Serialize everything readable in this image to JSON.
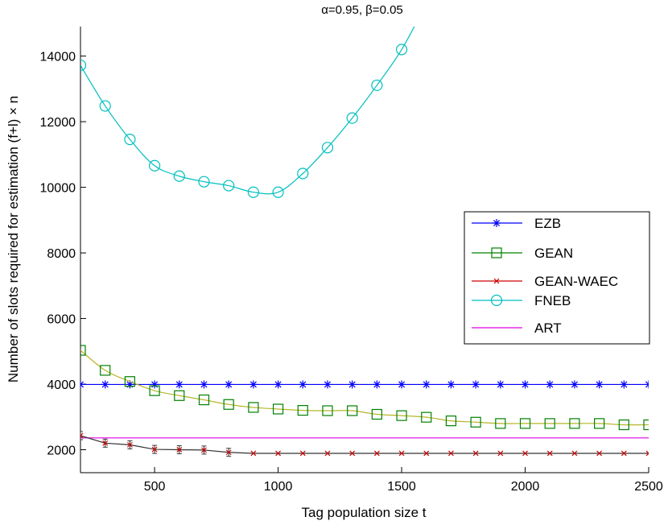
{
  "chart_data": {
    "type": "line",
    "title": "α=0.95, β=0.05",
    "xlabel": "Tag population size t",
    "ylabel": "Number of slots required for estimation (f+l) × n",
    "xlim": [
      200,
      2500
    ],
    "ylim": [
      1300,
      14900
    ],
    "xticks": [
      500,
      1000,
      1500,
      2000,
      2500
    ],
    "yticks": [
      2000,
      4000,
      6000,
      8000,
      10000,
      12000,
      14000
    ],
    "grid": false,
    "legend_position": "right",
    "series": [
      {
        "name": "EZB",
        "color": "#0000ff",
        "marker": "asterisk",
        "x": [
          200,
          300,
          400,
          500,
          600,
          700,
          800,
          900,
          1000,
          1100,
          1200,
          1300,
          1400,
          1500,
          1600,
          1700,
          1800,
          1900,
          2000,
          2100,
          2200,
          2300,
          2400,
          2500
        ],
        "y": [
          3990,
          3990,
          3990,
          3990,
          3990,
          3990,
          3990,
          3990,
          3990,
          3990,
          3990,
          3990,
          3990,
          3990,
          3990,
          3990,
          3990,
          3990,
          3990,
          3990,
          3990,
          3990,
          3990,
          3990
        ]
      },
      {
        "name": "GEAN",
        "color": "#008000",
        "line_color": "#b5b52a",
        "marker": "square",
        "x": [
          200,
          300,
          400,
          500,
          600,
          700,
          800,
          900,
          1000,
          1100,
          1200,
          1300,
          1400,
          1500,
          1600,
          1700,
          1800,
          1900,
          2000,
          2100,
          2200,
          2300,
          2400,
          2500
        ],
        "y": [
          5030,
          4420,
          4080,
          3800,
          3650,
          3520,
          3380,
          3290,
          3240,
          3200,
          3190,
          3190,
          3080,
          3040,
          2990,
          2880,
          2840,
          2800,
          2800,
          2800,
          2800,
          2800,
          2760,
          2760
        ]
      },
      {
        "name": "GEAN-WAEC",
        "color": "#cc0000",
        "line_color": "#333333",
        "marker": "x",
        "error_bars": true,
        "x": [
          200,
          300,
          400,
          500,
          600,
          700,
          800,
          900,
          1000,
          1100,
          1200,
          1300,
          1400,
          1500,
          1600,
          1700,
          1800,
          1900,
          2000,
          2100,
          2200,
          2300,
          2400,
          2500
        ],
        "y": [
          2430,
          2200,
          2150,
          2010,
          2000,
          1990,
          1920,
          1890,
          1890,
          1890,
          1890,
          1890,
          1890,
          1890,
          1890,
          1890,
          1890,
          1890,
          1890,
          1890,
          1890,
          1890,
          1890,
          1890
        ]
      },
      {
        "name": "FNEB",
        "color": "#00bfbf",
        "marker": "circle",
        "x": [
          200,
          300,
          400,
          500,
          600,
          700,
          800,
          900,
          1000,
          1100,
          1200,
          1300,
          1400,
          1500,
          1600
        ],
        "y": [
          13720,
          12480,
          11460,
          10660,
          10340,
          10170,
          10050,
          9850,
          9850,
          10420,
          11210,
          12110,
          13110,
          14200,
          15600
        ]
      },
      {
        "name": "ART",
        "color": "#e000e0",
        "marker": "none",
        "x": [
          200,
          2500
        ],
        "y": [
          2360,
          2360
        ]
      }
    ]
  }
}
